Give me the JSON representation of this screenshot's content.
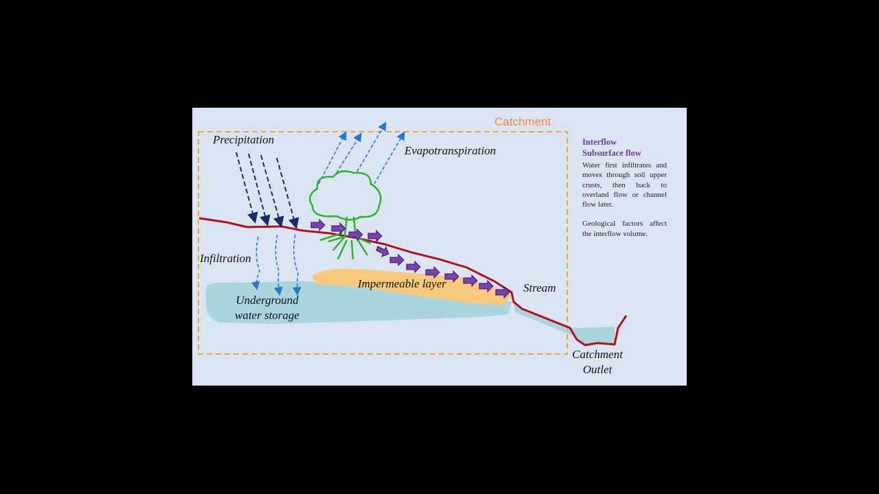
{
  "diagram": {
    "labels": {
      "catchment": "Catchment",
      "precipitation": "Precipitation",
      "evapotranspiration": "Evapotranspiration",
      "infiltration": "Infiltration",
      "underground_storage": [
        "Underground",
        "water storage"
      ],
      "impermeable_layer": "Impermeable layer",
      "stream": "Stream",
      "catchment_outlet": [
        "Catchment",
        "Outlet"
      ]
    }
  },
  "sidebar": {
    "title": [
      "Interflow",
      "Subsurface flow"
    ],
    "paragraphs": [
      "Water first infiltrates and moves through soil upper crusts, then back to overland flow or channel flow later.",
      "Geological factors affect the interflow volume."
    ]
  }
}
